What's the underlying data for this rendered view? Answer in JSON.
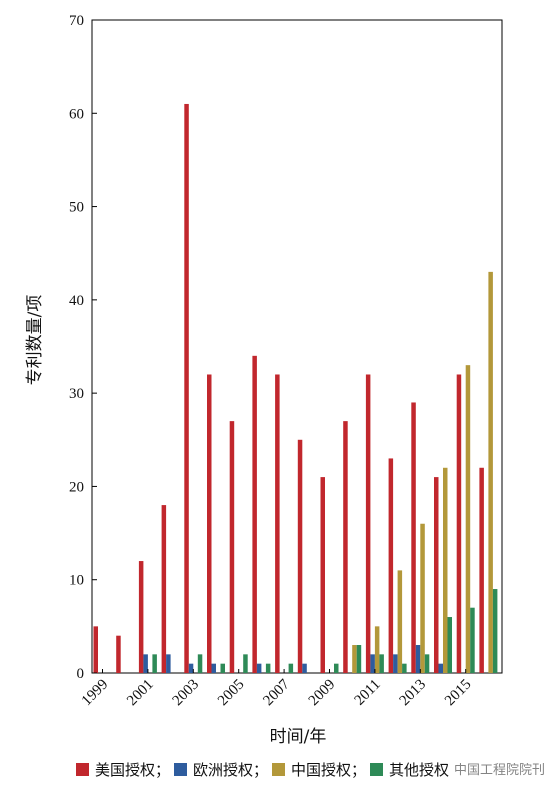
{
  "chart_data": {
    "type": "bar",
    "xlabel": "时间/年",
    "ylabel": "专利数量/项",
    "ylim": [
      0,
      70
    ],
    "yticks": [
      0,
      10,
      20,
      30,
      40,
      50,
      60,
      70
    ],
    "years": [
      1999,
      2000,
      2001,
      2002,
      2003,
      2004,
      2005,
      2006,
      2007,
      2008,
      2009,
      2010,
      2011,
      2012,
      2013,
      2014,
      2015,
      2016
    ],
    "xtick_labels": [
      "1999",
      "2001",
      "2003",
      "2005",
      "2007",
      "2009",
      "2011",
      "2013",
      "2015"
    ],
    "series": [
      {
        "name": "美国授权",
        "legend_label": "美国授权；",
        "color": "#c1272d",
        "values": [
          5,
          4,
          12,
          18,
          61,
          32,
          27,
          34,
          32,
          25,
          21,
          27,
          32,
          23,
          29,
          21,
          32,
          22
        ]
      },
      {
        "name": "欧洲授权",
        "legend_label": "欧洲授权；",
        "color": "#2e5c9e",
        "values": [
          0,
          0,
          2,
          2,
          1,
          1,
          0,
          1,
          0,
          1,
          0,
          0,
          2,
          2,
          3,
          1,
          0,
          0
        ]
      },
      {
        "name": "中国授权",
        "legend_label": "中国授权；",
        "color": "#b3983a",
        "values": [
          0,
          0,
          0,
          0,
          0,
          0,
          0,
          0,
          0,
          0,
          0,
          3,
          5,
          11,
          16,
          22,
          33,
          43
        ]
      },
      {
        "name": "其他授权",
        "legend_label": "其他授权",
        "color": "#2e8a57",
        "values": [
          0,
          0,
          2,
          0,
          2,
          1,
          2,
          1,
          1,
          0,
          1,
          3,
          2,
          1,
          2,
          6,
          7,
          9
        ]
      }
    ],
    "grid": false,
    "legend_position": "bottom"
  },
  "watermark": "中国工程院院刊"
}
